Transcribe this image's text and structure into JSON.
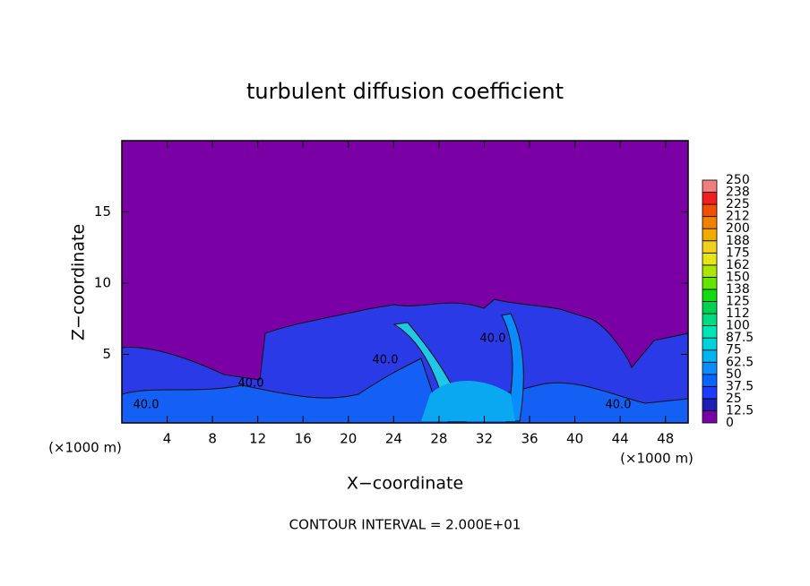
{
  "chart_data": {
    "type": "contour",
    "title": "turbulent diffusion coefficient",
    "x_label": "X−coordinate",
    "y_label": "Z−coordinate",
    "x_unit": "(×1000 m)",
    "y_unit": "(×1000 m)",
    "footer": "CONTOUR INTERVAL = 2.000E+01",
    "xlim": [
      0,
      50
    ],
    "ylim": [
      0,
      20
    ],
    "xticks": [
      4,
      8,
      12,
      16,
      20,
      24,
      28,
      32,
      36,
      40,
      44,
      48
    ],
    "yticks": [
      5,
      10,
      15
    ],
    "background_color": "#7a00a6",
    "contour_labels": [
      "40.0",
      "40.0",
      "40.0",
      "40.0",
      "40.0"
    ],
    "colorbar": {
      "ticks": [
        0,
        12.5,
        25,
        37.5,
        50,
        62.5,
        75,
        87.5,
        100,
        {
          "value": 112.5,
          "label": "112"
        },
        125,
        {
          "value": 137.5,
          "label": "138"
        },
        150,
        {
          "value": 162.5,
          "label": "162"
        },
        175,
        {
          "value": 187.5,
          "label": "188"
        },
        200,
        {
          "value": 212.5,
          "label": "212"
        },
        225,
        {
          "value": 237.5,
          "label": "238"
        },
        250
      ],
      "colors": [
        "#7a00a6",
        "#1e1eb4",
        "#1e3cff",
        "#0a64ff",
        "#0a8cff",
        "#00b4f0",
        "#00d2dc",
        "#00e6b4",
        "#00dc82",
        "#00d250",
        "#14dc14",
        "#64e600",
        "#aae600",
        "#e6e614",
        "#f0d21e",
        "#f0aa00",
        "#f08200",
        "#f05000",
        "#f01e1e",
        "#f08080"
      ]
    }
  }
}
